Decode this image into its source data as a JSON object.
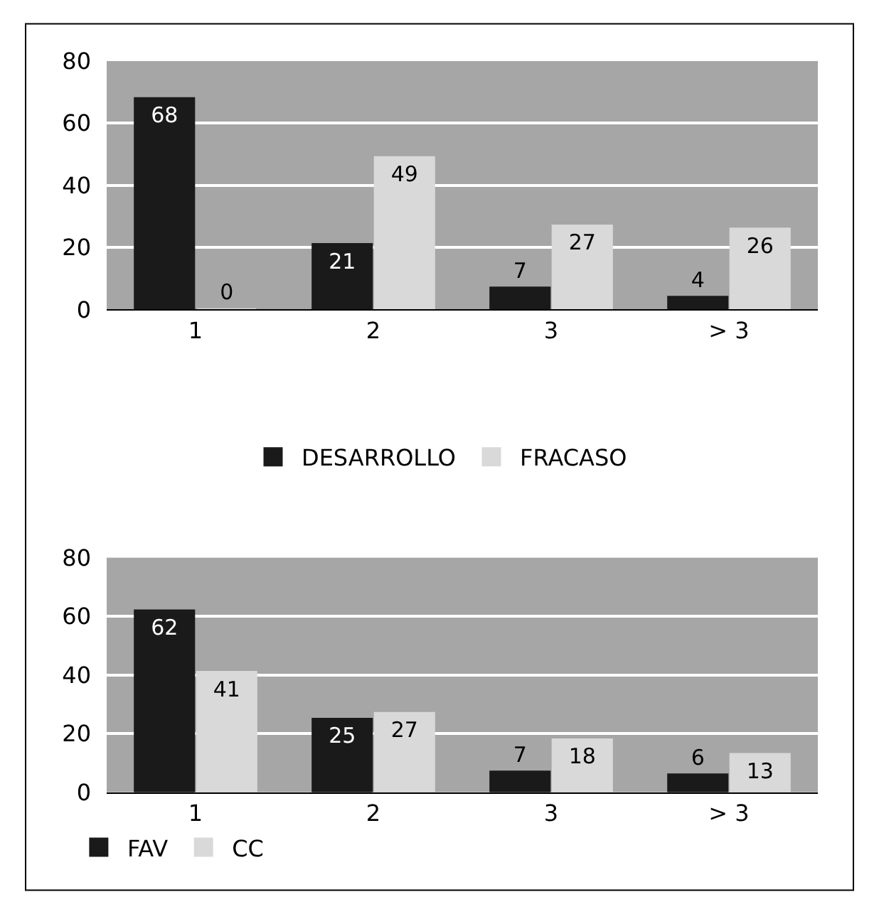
{
  "chart_data": [
    {
      "type": "bar",
      "categories": [
        "1",
        "2",
        "3",
        "> 3"
      ],
      "series": [
        {
          "name": "DESARROLLO",
          "color": "#1a1a1a",
          "values": [
            68,
            21,
            7,
            4
          ]
        },
        {
          "name": "FRACASO",
          "color": "#d9d9d9",
          "values": [
            0,
            49,
            27,
            26
          ]
        }
      ],
      "ylim": [
        0,
        80
      ],
      "yticks": [
        0,
        20,
        40,
        60,
        80
      ],
      "grid": "y",
      "data_labels": true,
      "legend": "bottom"
    },
    {
      "type": "bar",
      "categories": [
        "1",
        "2",
        "3",
        "> 3"
      ],
      "series": [
        {
          "name": "FAV",
          "color": "#1a1a1a",
          "values": [
            62,
            25,
            7,
            6
          ]
        },
        {
          "name": "CC",
          "color": "#d9d9d9",
          "values": [
            41,
            27,
            18,
            13
          ]
        }
      ],
      "ylim": [
        0,
        80
      ],
      "yticks": [
        0,
        20,
        40,
        60,
        80
      ],
      "grid": "y",
      "data_labels": true,
      "legend": "bottom left"
    }
  ]
}
